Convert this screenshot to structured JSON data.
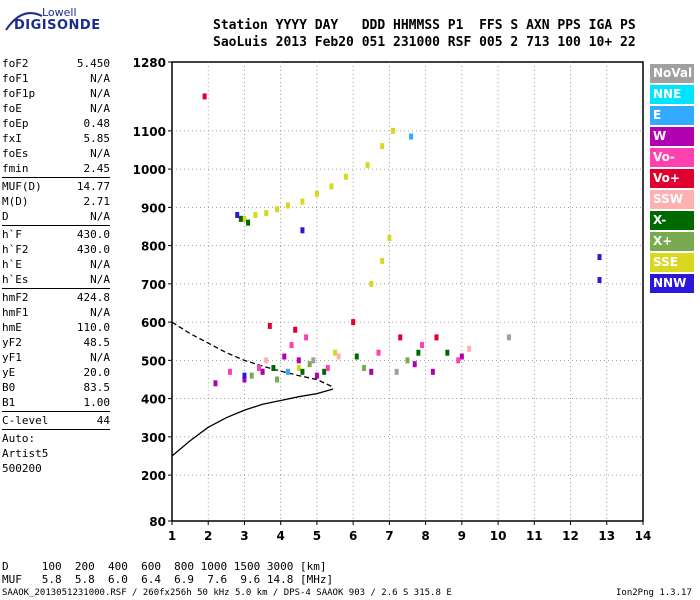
{
  "logo": {
    "line1": "Lowell",
    "line2": "DIGISONDE"
  },
  "header": {
    "row1": "Station YYYY DAY   DDD HHMMSS P1  FFS S AXN PPS IGA PS",
    "row2": "SaoLuis 2013 Feb20 051 231000 RSF 005 2 713 100 10+ 22"
  },
  "params": [
    {
      "label": "foF2",
      "value": "5.450"
    },
    {
      "label": "foF1",
      "value": "N/A"
    },
    {
      "label": "foF1p",
      "value": "N/A"
    },
    {
      "label": "foE",
      "value": "N/A"
    },
    {
      "label": "foEp",
      "value": "0.48"
    },
    {
      "label": "fxI",
      "value": "5.85"
    },
    {
      "label": "foEs",
      "value": "N/A"
    },
    {
      "label": "fmin",
      "value": "2.45",
      "sep_after": true
    },
    {
      "label": "MUF(D)",
      "value": "14.77"
    },
    {
      "label": "M(D)",
      "value": "2.71"
    },
    {
      "label": "D",
      "value": "N/A",
      "sep_after": true
    },
    {
      "label": "h`F",
      "value": "430.0"
    },
    {
      "label": "h`F2",
      "value": "430.0"
    },
    {
      "label": "h`E",
      "value": "N/A"
    },
    {
      "label": "h`Es",
      "value": "N/A",
      "sep_after": true
    },
    {
      "label": "hmF2",
      "value": "424.8"
    },
    {
      "label": "hmF1",
      "value": "N/A"
    },
    {
      "label": "hmE",
      "value": "110.0"
    },
    {
      "label": "yF2",
      "value": "48.5"
    },
    {
      "label": "yF1",
      "value": "N/A"
    },
    {
      "label": "yE",
      "value": "20.0"
    },
    {
      "label": "B0",
      "value": "83.5"
    },
    {
      "label": "B1",
      "value": "1.00",
      "sep_after": true
    },
    {
      "label": "C-level",
      "value": "44",
      "sep_after": true
    },
    {
      "label": "Auto:",
      "value": ""
    },
    {
      "label": "Artist5",
      "value": ""
    },
    {
      "label": "500200",
      "value": ""
    }
  ],
  "legend": [
    {
      "label": "NoVal",
      "color": "#a0a0a0"
    },
    {
      "label": "NNE",
      "color": "#00e5ff"
    },
    {
      "label": "E",
      "color": "#33aaff"
    },
    {
      "label": "W",
      "color": "#b000b0"
    },
    {
      "label": "Vo-",
      "color": "#ff40b0"
    },
    {
      "label": "Vo+",
      "color": "#e00030"
    },
    {
      "label": "SSW",
      "color": "#ffb0b0"
    },
    {
      "label": "X-",
      "color": "#006a00"
    },
    {
      "label": "X+",
      "color": "#7aaa50"
    },
    {
      "label": "SSE",
      "color": "#d8d820"
    },
    {
      "label": "NNW",
      "color": "#2a18d8"
    }
  ],
  "footer": {
    "d_row": "D     100  200  400  600  800 1000 1500 3000 [km]",
    "muf_row": "MUF   5.8  5.8  6.0  6.4  6.9  7.6  9.6 14.8 [MHz]",
    "info": "SAAOK_2013051231000.RSF / 260fx256h 50 kHz 5.0 km / DPS-4 SAAOK 903 / 2.6 S 315.8 E",
    "version": "Ion2Png 1.3.17"
  },
  "chart_data": {
    "type": "scatter",
    "x_ticks": [
      1,
      2,
      3,
      4,
      5,
      6,
      7,
      8,
      9,
      10,
      11,
      12,
      13,
      14
    ],
    "y_ticks": [
      80,
      200,
      300,
      400,
      500,
      600,
      700,
      800,
      900,
      1000,
      1100,
      1280
    ],
    "xlim": [
      1,
      14
    ],
    "ylim": [
      80,
      1280
    ],
    "grid": true,
    "series": [
      {
        "name": "SSE",
        "color": "#d8d820",
        "points": [
          [
            3.0,
            870
          ],
          [
            3.3,
            880
          ],
          [
            3.6,
            885
          ],
          [
            3.9,
            895
          ],
          [
            4.2,
            905
          ],
          [
            4.6,
            915
          ],
          [
            5.0,
            935
          ],
          [
            5.4,
            955
          ],
          [
            5.8,
            980
          ],
          [
            6.4,
            1010
          ],
          [
            6.8,
            1060
          ],
          [
            7.1,
            1100
          ],
          [
            6.5,
            700
          ],
          [
            6.8,
            760
          ],
          [
            7.0,
            820
          ],
          [
            3.5,
            470
          ],
          [
            4.5,
            480
          ],
          [
            5.5,
            520
          ]
        ]
      },
      {
        "name": "X-",
        "color": "#006a00",
        "points": [
          [
            2.9,
            870
          ],
          [
            3.1,
            860
          ],
          [
            3.8,
            480
          ],
          [
            4.6,
            470
          ],
          [
            5.2,
            470
          ],
          [
            6.1,
            510
          ],
          [
            7.8,
            520
          ],
          [
            8.6,
            520
          ]
        ]
      },
      {
        "name": "X+",
        "color": "#7aaa50",
        "points": [
          [
            3.2,
            460
          ],
          [
            3.9,
            450
          ],
          [
            4.8,
            490
          ],
          [
            6.3,
            480
          ],
          [
            7.5,
            500
          ]
        ]
      },
      {
        "name": "W",
        "color": "#b000b0",
        "points": [
          [
            2.2,
            440
          ],
          [
            3.0,
            450
          ],
          [
            3.5,
            470
          ],
          [
            4.1,
            510
          ],
          [
            4.5,
            500
          ],
          [
            5.0,
            460
          ],
          [
            6.5,
            470
          ],
          [
            7.7,
            490
          ],
          [
            8.2,
            470
          ],
          [
            9.0,
            510
          ]
        ]
      },
      {
        "name": "Vo-",
        "color": "#ff40b0",
        "points": [
          [
            2.6,
            470
          ],
          [
            3.4,
            480
          ],
          [
            4.3,
            540
          ],
          [
            4.7,
            560
          ],
          [
            5.3,
            480
          ],
          [
            6.7,
            520
          ],
          [
            7.9,
            540
          ],
          [
            8.9,
            500
          ]
        ]
      },
      {
        "name": "Vo+",
        "color": "#e00030",
        "points": [
          [
            3.7,
            590
          ],
          [
            4.4,
            580
          ],
          [
            6.0,
            600
          ],
          [
            7.3,
            560
          ],
          [
            8.3,
            560
          ],
          [
            1.9,
            1190
          ]
        ]
      },
      {
        "name": "NNW",
        "color": "#2a18d8",
        "points": [
          [
            2.8,
            880
          ],
          [
            4.6,
            840
          ],
          [
            3.0,
            460
          ],
          [
            12.8,
            770
          ],
          [
            12.8,
            710
          ]
        ]
      },
      {
        "name": "E",
        "color": "#33aaff",
        "points": [
          [
            7.6,
            1085
          ],
          [
            4.2,
            470
          ]
        ]
      },
      {
        "name": "SSW",
        "color": "#ffb0b0",
        "points": [
          [
            3.6,
            500
          ],
          [
            5.6,
            510
          ],
          [
            9.2,
            530
          ]
        ]
      },
      {
        "name": "NoVal",
        "color": "#a0a0a0",
        "points": [
          [
            4.9,
            500
          ],
          [
            7.2,
            470
          ],
          [
            10.3,
            560
          ]
        ]
      }
    ],
    "curves": [
      {
        "name": "profile",
        "color": "#000000",
        "dash": false,
        "points": [
          [
            1.0,
            250
          ],
          [
            1.5,
            290
          ],
          [
            2.0,
            325
          ],
          [
            2.5,
            350
          ],
          [
            3.0,
            370
          ],
          [
            3.5,
            385
          ],
          [
            4.0,
            395
          ],
          [
            4.5,
            405
          ],
          [
            5.0,
            413
          ],
          [
            5.45,
            425
          ]
        ]
      },
      {
        "name": "muf-curve",
        "color": "#000000",
        "dash": true,
        "points": [
          [
            1.0,
            600
          ],
          [
            1.5,
            570
          ],
          [
            2.0,
            545
          ],
          [
            2.5,
            520
          ],
          [
            3.0,
            500
          ],
          [
            3.5,
            485
          ],
          [
            4.0,
            472
          ],
          [
            4.5,
            460
          ],
          [
            5.0,
            450
          ],
          [
            5.45,
            430
          ]
        ]
      }
    ]
  }
}
